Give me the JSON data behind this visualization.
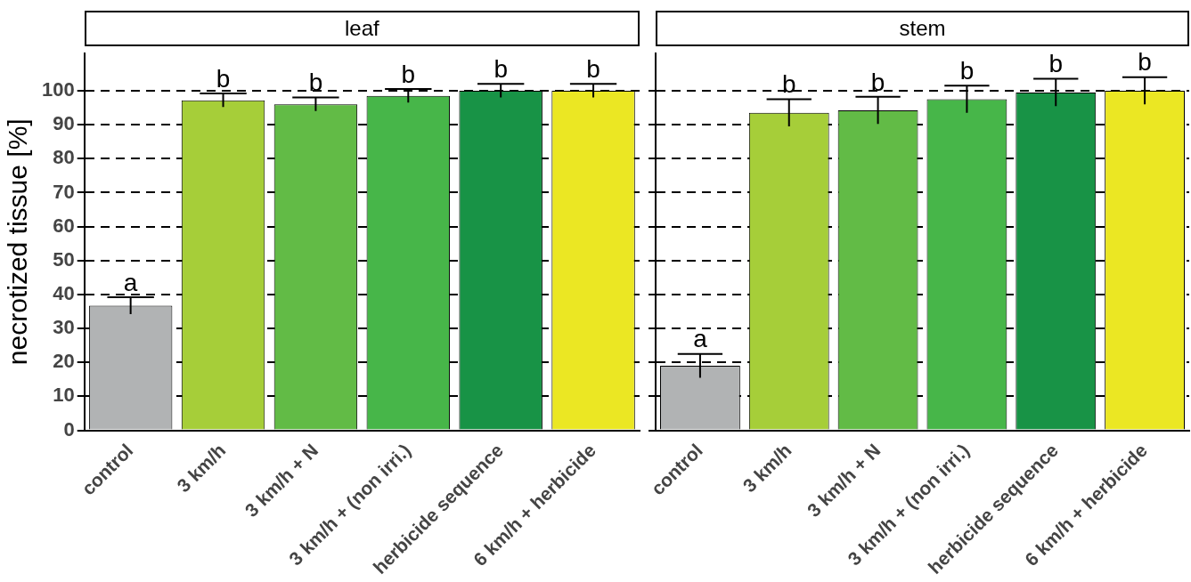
{
  "chart_data": [
    {
      "type": "bar",
      "title": "leaf",
      "ylabel": "necrotized tissue [%]",
      "categories": [
        "control",
        "3 km/h",
        "3 km/h + N",
        "3 km/h + (non irri.)",
        "herbicide sequence",
        "6 km/h + herbicide"
      ],
      "values": [
        36.7,
        97.2,
        96,
        98.5,
        100,
        100
      ],
      "errors": [
        2.5,
        2,
        2,
        2,
        2,
        2
      ],
      "colors": [
        "#b1b3b4",
        "#a6ce39",
        "#62bb46",
        "#47b649",
        "#189346",
        "#ebe723"
      ],
      "ylim": [
        0,
        111
      ],
      "yticks": [
        0,
        10,
        20,
        30,
        40,
        50,
        60,
        70,
        80,
        90,
        100
      ],
      "grid": "y",
      "legend": false,
      "annotations": [
        {
          "text": "a",
          "x": "control",
          "y": 39.2
        },
        {
          "text": "b",
          "x": "3 km/h",
          "y": 99.2
        },
        {
          "text": "b",
          "x": "3 km/h + N",
          "y": 98
        },
        {
          "text": "b",
          "x": "3 km/h + (non irri.)",
          "y": 100.5
        },
        {
          "text": "b",
          "x": "herbicide sequence",
          "y": 102
        },
        {
          "text": "b",
          "x": "6 km/h + herbicide",
          "y": 102
        }
      ]
    },
    {
      "type": "bar",
      "title": "stem",
      "categories": [
        "control",
        "3 km/h",
        "3 km/h + N",
        "3 km/h + (non irri.)",
        "herbicide sequence",
        "6 km/h + herbicide"
      ],
      "values": [
        19,
        93.5,
        94.2,
        97.5,
        99.5,
        100
      ],
      "errors": [
        3.5,
        4,
        4,
        4,
        4,
        4
      ],
      "colors": [
        "#b1b3b4",
        "#a6ce39",
        "#62bb46",
        "#47b649",
        "#189346",
        "#ebe723"
      ],
      "ylim": [
        0,
        111
      ],
      "yticks": [
        0,
        10,
        20,
        30,
        40,
        50,
        60,
        70,
        80,
        90,
        100
      ],
      "grid": "y",
      "legend": false,
      "tick_labels": "x",
      "annotations": [
        {
          "text": "a",
          "x": "control",
          "y": 22.5
        },
        {
          "text": "b",
          "x": "3 km/h",
          "y": 97.5
        },
        {
          "text": "b",
          "x": "3 km/h + N",
          "y": 98.2
        },
        {
          "text": "b",
          "x": "3 km/h + (non irri.)",
          "y": 101.5
        },
        {
          "text": "b",
          "x": "herbicide sequence",
          "y": 103.5
        },
        {
          "text": "b",
          "x": "6 km/h + herbicide",
          "y": 104
        }
      ]
    }
  ]
}
